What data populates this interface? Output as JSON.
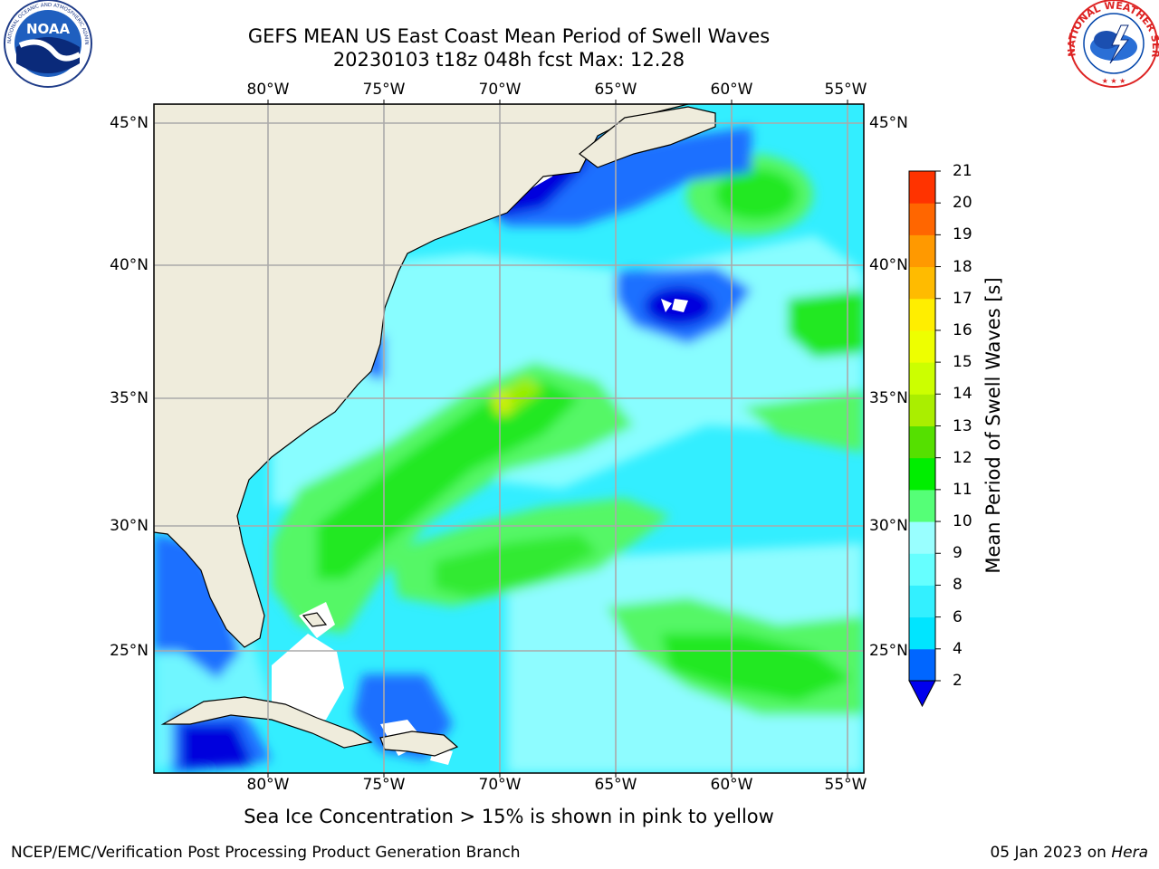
{
  "title": {
    "line1": "GEFS MEAN US East Coast Mean Period of Swell Waves",
    "line2": "20230103 t18z 048h fcst   Max: 12.28"
  },
  "axes": {
    "lon_ticks": [
      "80°W",
      "75°W",
      "70°W",
      "65°W",
      "60°W",
      "55°W"
    ],
    "lat_ticks": [
      "45°N",
      "40°N",
      "35°N",
      "30°N",
      "25°N"
    ]
  },
  "colorbar": {
    "label": "Mean Period of Swell Waves [s]",
    "ticks": [
      "2",
      "4",
      "6",
      "8",
      "9",
      "10",
      "11",
      "12",
      "13",
      "14",
      "15",
      "16",
      "17",
      "18",
      "19",
      "20",
      "21"
    ],
    "colors": [
      "#0066ff",
      "#00e5ff",
      "#33f0ff",
      "#66ffff",
      "#99ffff",
      "#55ff77",
      "#00ee00",
      "#55e000",
      "#aaee00",
      "#ccff00",
      "#eeff00",
      "#ffee00",
      "#ffbb00",
      "#ff9900",
      "#ff6600",
      "#ff3300",
      "#ff0000"
    ],
    "extend_color": "#0000ee"
  },
  "map_colors": {
    "land": "#efecdc",
    "ocean_base": "#33eeff",
    "grid": "#aaaaaa"
  },
  "subnote": "Sea Ice Concentration > 15% is shown in pink to yellow",
  "footer": {
    "left": "NCEP/EMC/Verification Post Processing Product Generation Branch",
    "right_date": "05 Jan 2023 on ",
    "right_host": "Hera"
  },
  "logos": {
    "noaa_text": "NOAA",
    "noaa_ring": "NATIONAL OCEANIC AND ATMOSPHERIC ADMINISTRATION · U.S. DEPARTMENT OF COMMERCE",
    "nws_ring": "NATIONAL WEATHER SERVICE"
  },
  "chart_data": {
    "type": "heatmap",
    "title": "GEFS MEAN US East Coast Mean Period of Swell Waves",
    "subtitle": "20230103 t18z 048h fcst   Max: 12.28",
    "units": "s",
    "colorbar_label": "Mean Period of Swell Waves [s]",
    "lon_range": [
      -85,
      -54
    ],
    "lat_range": [
      20.5,
      46
    ],
    "max_value": 12.28,
    "features": [
      {
        "region": "Gulf Stream band SE of Cape Hatteras",
        "period_s": "10-12"
      },
      {
        "region": "Band E of Bahamas",
        "period_s": "9-11"
      },
      {
        "region": "SE Atlantic 23-27N, 63-55W",
        "period_s": "9-11"
      },
      {
        "region": "Off Nova Scotia 42-44N",
        "period_s": "10-11"
      },
      {
        "region": "Around 39N 63W",
        "period_s": "2-4"
      },
      {
        "region": "Gulf of Maine",
        "period_s": "2-4"
      }
    ]
  }
}
